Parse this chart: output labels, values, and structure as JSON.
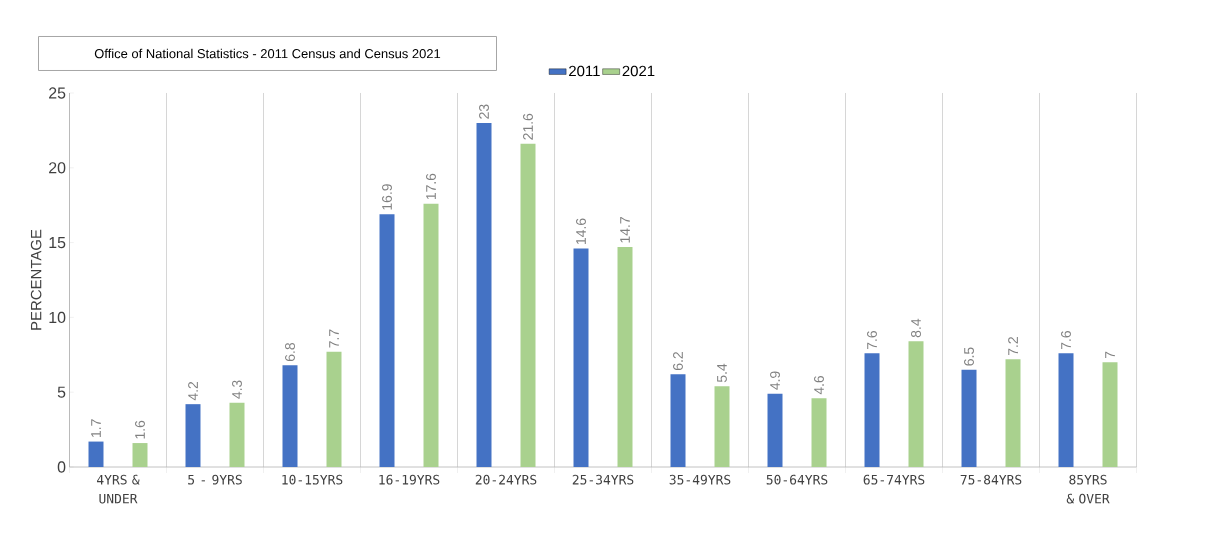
{
  "chart_data": {
    "type": "bar",
    "title": "Office of National Statistics - 2011 Census and Census 2021",
    "ylabel": "PERCENTAGE",
    "categories": [
      "4YRS & UNDER",
      "5 - 9YRS",
      "10-15YRS",
      "16-19YRS",
      "20-24YRS",
      "25-34YRS",
      "35-49YRS",
      "50-64YRS",
      "65-74YRS",
      "75-84YRS",
      "85YRS & OVER"
    ],
    "series": [
      {
        "name": "2011",
        "color": "#4472c4",
        "values": [
          1.7,
          4.2,
          6.8,
          16.9,
          23,
          14.6,
          6.2,
          4.9,
          7.6,
          6.5,
          7.6
        ]
      },
      {
        "name": "2021",
        "color": "#a9d18e",
        "values": [
          1.6,
          4.3,
          7.7,
          17.6,
          21.6,
          14.7,
          5.4,
          4.6,
          8.4,
          7.2,
          7
        ]
      }
    ],
    "ylim": [
      0,
      25
    ],
    "yticks": [
      0,
      5,
      10,
      15,
      20,
      25
    ],
    "data_labels": true,
    "grid": "x",
    "legend": "top"
  }
}
